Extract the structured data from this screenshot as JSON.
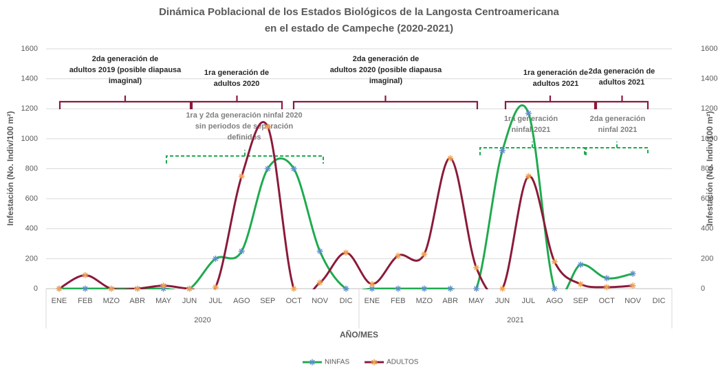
{
  "chart_data": {
    "type": "line",
    "title": [
      "Dinámica Poblacional de los Estados Biológicos de la Langosta Centroamericana",
      "en el estado de Campeche (2020-2021)"
    ],
    "x_label": "AÑO/MES",
    "y_label": "Infestación (No. Indiv/100 m²)",
    "y2_label": "Infestación (No. Indiv/100 m²)",
    "categories": [
      "ENE",
      "FEB",
      "MZO",
      "ABR",
      "MAY",
      "JUN",
      "JUL",
      "AGO",
      "SEP",
      "OCT",
      "NOV",
      "DIC",
      "ENE",
      "FEB",
      "MZO",
      "ABR",
      "MAY",
      "JUN",
      "JUL",
      "AGO",
      "SEP",
      "OCT",
      "NOV",
      "DIC"
    ],
    "category_groups": [
      "2020",
      "2021"
    ],
    "ylim": [
      0,
      1600
    ],
    "yticks": [
      0,
      200,
      400,
      600,
      800,
      1000,
      1200,
      1400,
      1600
    ],
    "y2lim": [
      0,
      1600
    ],
    "y2ticks": [
      0,
      200,
      400,
      600,
      800,
      1000,
      1200,
      1400,
      1600
    ],
    "grid": true,
    "smooth": true,
    "legend": "bottom",
    "series": [
      {
        "name": "NINFAS",
        "color": "#1faa4f",
        "marker_color": "#5b8fc7",
        "values": [
          0,
          0,
          0,
          0,
          0,
          0,
          200,
          250,
          800,
          800,
          250,
          0,
          0,
          0,
          0,
          0,
          0,
          920,
          1170,
          0,
          160,
          70,
          100,
          null
        ]
      },
      {
        "name": "ADULTOS",
        "color": "#8b1a3a",
        "marker_color": "#f0a050",
        "values": [
          0,
          90,
          0,
          0,
          20,
          0,
          10,
          750,
          1080,
          0,
          40,
          240,
          30,
          220,
          230,
          870,
          140,
          0,
          750,
          180,
          30,
          10,
          20,
          null
        ]
      }
    ],
    "annotations": [
      {
        "lines": [
          "2da generación de",
          "adultos 2019 (posible diapausa",
          "imaginal)"
        ],
        "color": "#8b1a3a"
      },
      {
        "lines": [
          "1ra generación de",
          "adultos 2020"
        ],
        "color": "#8b1a3a"
      },
      {
        "lines": [
          "2da generación de",
          "adultos 2020 (posible diapausa",
          "imaginal)"
        ],
        "color": "#8b1a3a"
      },
      {
        "lines": [
          "1ra generación de",
          "adultos 2021"
        ],
        "color": "#8b1a3a"
      },
      {
        "lines": [
          "2da generación de",
          "adultos 2021"
        ],
        "color": "#8b1a3a"
      },
      {
        "lines": [
          "1ra y 2da generación ninfal 2020",
          "sin periodos de separación",
          "definidos"
        ],
        "color": "#1faa4f"
      },
      {
        "lines": [
          "1ra generación",
          "ninfal 2021"
        ],
        "color": "#1faa4f"
      },
      {
        "lines": [
          "2da generación",
          "ninfal 2021"
        ],
        "color": "#1faa4f"
      }
    ]
  }
}
